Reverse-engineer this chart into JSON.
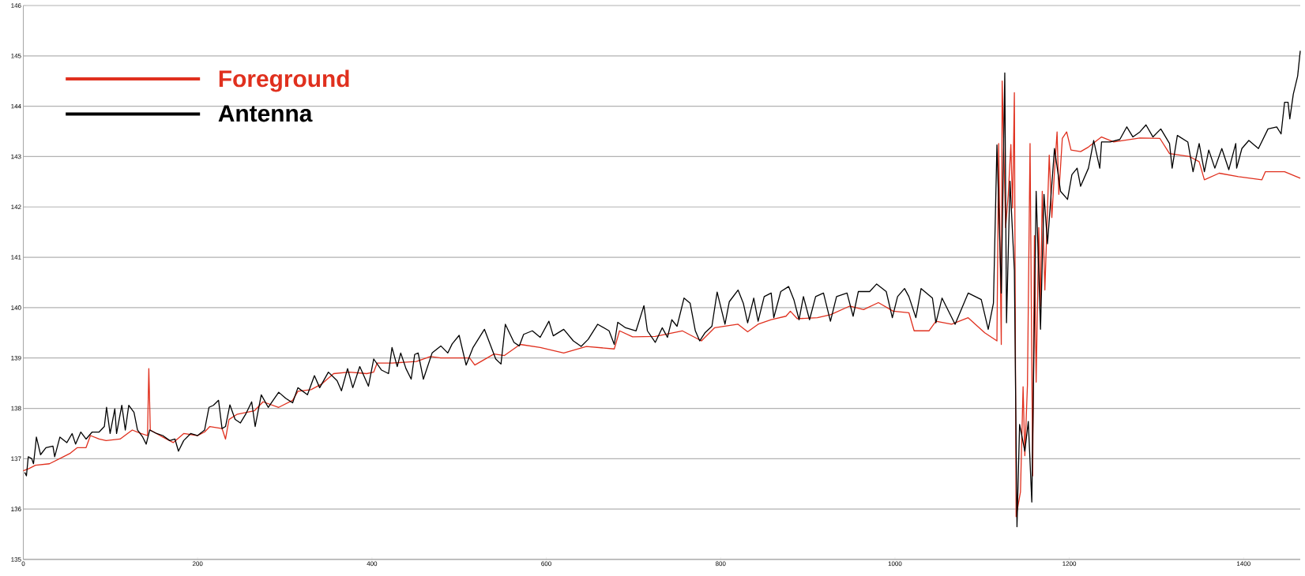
{
  "chart_data": {
    "type": "line",
    "xlim": [
      0,
      1465
    ],
    "ylim": [
      135,
      146
    ],
    "xticks": [
      0,
      200,
      400,
      600,
      800,
      1000,
      1200,
      1400
    ],
    "yticks": [
      135,
      136,
      137,
      138,
      139,
      140,
      141,
      142,
      143,
      144,
      145,
      146
    ],
    "grid": "y",
    "legend": "top left",
    "line_style": "solid",
    "marker": "none",
    "series": [
      {
        "name": "Foreground",
        "color": "#e0301e",
        "x": [
          0,
          6,
          14,
          30,
          46,
          54,
          62,
          72,
          77,
          87,
          95,
          111,
          125,
          135,
          142.5,
          144,
          145.7,
          160,
          172,
          184,
          200,
          208,
          214,
          228,
          232,
          236,
          245,
          265,
          275,
          293,
          309,
          315,
          330,
          342,
          356,
          374,
          394,
          402,
          406,
          423,
          451,
          467,
          479,
          512,
          518,
          540,
          552,
          570,
          593,
          620,
          646,
          678,
          684,
          699,
          725,
          756,
          778,
          793,
          820,
          831,
          843,
          858,
          875,
          880,
          888,
          911,
          926,
          948,
          964,
          981,
          998,
          1016,
          1022,
          1039,
          1047,
          1065,
          1084,
          1103,
          1117,
          1119,
          1122,
          1123,
          1127,
          1130,
          1133,
          1135,
          1137,
          1139,
          1144,
          1147,
          1149,
          1152,
          1155,
          1158,
          1160,
          1162,
          1165,
          1167,
          1169,
          1172,
          1177,
          1180,
          1183,
          1186,
          1188,
          1192,
          1197,
          1202,
          1213,
          1222,
          1237,
          1251,
          1281,
          1304,
          1315,
          1338,
          1349,
          1355,
          1372,
          1394,
          1421,
          1425,
          1447,
          1465
        ],
        "values": [
          136.76,
          136.8,
          136.87,
          136.9,
          137.04,
          137.11,
          137.22,
          137.22,
          137.46,
          137.39,
          137.36,
          137.39,
          137.57,
          137.5,
          137.46,
          138.79,
          137.57,
          137.43,
          137.32,
          137.5,
          137.46,
          137.53,
          137.64,
          137.6,
          137.39,
          137.78,
          137.88,
          137.95,
          138.13,
          138.02,
          138.16,
          138.34,
          138.37,
          138.48,
          138.69,
          138.72,
          138.69,
          138.72,
          138.9,
          138.9,
          138.93,
          139.03,
          139.0,
          139.0,
          138.86,
          139.08,
          139.05,
          139.27,
          139.21,
          139.1,
          139.23,
          139.18,
          139.54,
          139.42,
          139.43,
          139.54,
          139.34,
          139.6,
          139.67,
          139.52,
          139.67,
          139.76,
          139.83,
          139.93,
          139.78,
          139.8,
          139.86,
          140.03,
          139.96,
          140.1,
          139.93,
          139.9,
          139.54,
          139.54,
          139.73,
          139.67,
          139.8,
          139.5,
          139.34,
          143.26,
          139.27,
          144.5,
          141.59,
          142.25,
          143.24,
          141.98,
          144.27,
          135.85,
          136.34,
          138.43,
          137.06,
          138.46,
          143.26,
          136.66,
          141.43,
          138.52,
          141.59,
          140.03,
          142.31,
          140.35,
          143.03,
          141.79,
          142.7,
          143.49,
          142.25,
          143.36,
          143.49,
          143.13,
          143.1,
          143.19,
          143.39,
          143.29,
          143.37,
          143.36,
          143.06,
          143.0,
          142.9,
          142.54,
          142.67,
          142.6,
          142.54,
          142.7,
          142.7,
          142.57
        ]
      },
      {
        "name": "Antenna",
        "color": "#000000",
        "x": [
          1.6,
          3.6,
          5.7,
          9.7,
          11.7,
          13.8,
          15,
          19.8,
          26,
          34,
          36,
          42,
          50,
          56,
          60,
          66,
          72,
          79,
          87,
          93,
          95.5,
          99.6,
          105,
          107,
          113,
          117,
          121,
          127,
          131,
          137,
          141,
          145,
          153,
          160,
          168,
          174,
          178,
          184,
          192,
          200,
          208,
          213,
          218,
          224,
          228,
          232,
          237,
          243,
          249,
          255,
          262,
          266,
          273,
          281,
          293,
          301,
          309,
          315,
          326,
          334,
          340,
          350,
          360,
          365,
          372,
          378,
          386,
          396,
          402,
          411,
          419,
          423,
          429,
          433,
          439,
          445,
          449,
          453,
          459,
          469,
          479,
          487,
          492,
          500,
          508,
          516,
          529,
          542,
          548,
          553,
          563,
          569,
          574,
          584,
          593,
          603,
          608,
          620,
          631,
          640,
          648,
          659,
          672,
          678,
          682,
          691,
          703,
          712,
          716,
          725,
          733,
          739,
          744,
          750,
          758,
          765,
          771,
          776,
          782,
          790,
          796,
          805,
          810,
          820,
          826,
          831,
          838,
          843,
          850,
          858,
          861,
          869,
          878,
          884,
          890,
          895,
          902,
          909,
          918,
          926,
          933,
          945,
          952,
          958,
          971,
          979,
          990,
          997,
          1003,
          1011,
          1016,
          1024,
          1030,
          1043,
          1047,
          1054,
          1069,
          1084,
          1099,
          1107,
          1113,
          1117,
          1122,
          1126,
          1128,
          1132,
          1137,
          1140,
          1143,
          1149,
          1153,
          1157,
          1162,
          1167,
          1171,
          1175,
          1183,
          1190,
          1198,
          1203,
          1209,
          1213,
          1222,
          1228,
          1235,
          1237,
          1247,
          1258,
          1266,
          1273,
          1281,
          1288,
          1296,
          1305,
          1315,
          1318,
          1324,
          1336,
          1342,
          1349,
          1355,
          1360,
          1367,
          1375,
          1383,
          1391,
          1392,
          1398,
          1406,
          1417,
          1428,
          1438,
          1443,
          1447,
          1451,
          1453,
          1457,
          1462,
          1465
        ],
        "values": [
          136.73,
          136.66,
          137.04,
          137.0,
          136.9,
          137.22,
          137.43,
          137.08,
          137.22,
          137.25,
          137.04,
          137.43,
          137.32,
          137.5,
          137.29,
          137.53,
          137.39,
          137.53,
          137.53,
          137.64,
          138.02,
          137.5,
          137.99,
          137.5,
          138.06,
          137.57,
          138.06,
          137.92,
          137.57,
          137.43,
          137.29,
          137.57,
          137.5,
          137.46,
          137.36,
          137.39,
          137.15,
          137.36,
          137.5,
          137.46,
          137.57,
          138.02,
          138.06,
          138.16,
          137.6,
          137.64,
          138.07,
          137.78,
          137.71,
          137.88,
          138.13,
          137.64,
          138.27,
          138.02,
          138.32,
          138.2,
          138.11,
          138.41,
          138.27,
          138.65,
          138.41,
          138.72,
          138.55,
          138.35,
          138.79,
          138.41,
          138.83,
          138.44,
          138.98,
          138.76,
          138.69,
          139.21,
          138.83,
          139.1,
          138.79,
          138.58,
          139.07,
          139.1,
          138.58,
          139.1,
          139.24,
          139.1,
          139.28,
          139.45,
          138.86,
          139.21,
          139.57,
          138.98,
          138.88,
          139.67,
          139.31,
          139.24,
          139.47,
          139.54,
          139.41,
          139.73,
          139.44,
          139.57,
          139.34,
          139.23,
          139.37,
          139.67,
          139.54,
          139.27,
          139.71,
          139.6,
          139.54,
          140.04,
          139.54,
          139.31,
          139.6,
          139.41,
          139.76,
          139.63,
          140.19,
          140.09,
          139.54,
          139.34,
          139.5,
          139.63,
          140.31,
          139.67,
          140.12,
          140.35,
          140.09,
          139.7,
          140.19,
          139.73,
          140.22,
          140.29,
          139.8,
          140.32,
          140.42,
          140.16,
          139.76,
          140.22,
          139.76,
          140.22,
          140.29,
          139.73,
          140.22,
          140.29,
          139.83,
          140.32,
          140.32,
          140.47,
          140.32,
          139.8,
          140.22,
          140.38,
          140.22,
          139.8,
          140.38,
          140.19,
          139.7,
          140.19,
          139.67,
          140.29,
          140.16,
          139.57,
          140.09,
          143.23,
          140.29,
          144.66,
          139.7,
          142.51,
          140.74,
          135.65,
          137.68,
          137.15,
          137.74,
          136.14,
          142.31,
          139.57,
          142.25,
          141.27,
          143.16,
          142.31,
          142.15,
          142.64,
          142.77,
          142.41,
          142.77,
          143.32,
          142.77,
          143.29,
          143.29,
          143.34,
          143.59,
          143.39,
          143.49,
          143.63,
          143.39,
          143.55,
          143.26,
          142.77,
          143.42,
          143.29,
          142.7,
          143.26,
          142.7,
          143.13,
          142.77,
          143.16,
          142.74,
          143.26,
          142.77,
          143.16,
          143.32,
          143.16,
          143.55,
          143.59,
          143.45,
          144.08,
          144.08,
          143.75,
          144.24,
          144.6,
          145.1
        ]
      }
    ]
  }
}
